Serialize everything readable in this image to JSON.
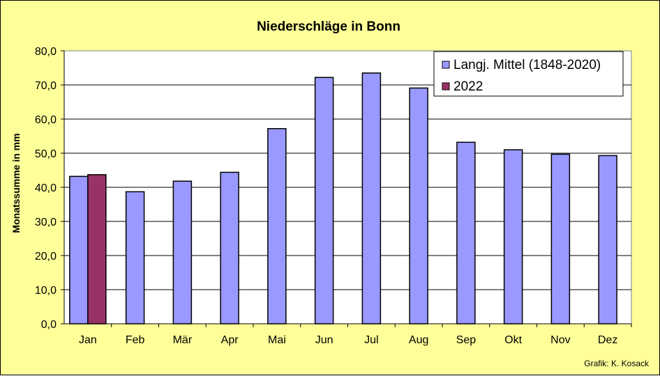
{
  "chart_data": {
    "type": "bar",
    "title": "Niederschläge in Bonn",
    "ylabel": "Monatssumme in mm",
    "xlabel": "",
    "ylim": [
      0,
      80
    ],
    "ytick_step": 10,
    "ytick_labels": [
      "0,0",
      "10,0",
      "20,0",
      "30,0",
      "40,0",
      "50,0",
      "60,0",
      "70,0",
      "80,0"
    ],
    "categories": [
      "Jan",
      "Feb",
      "Mär",
      "Apr",
      "Mai",
      "Jun",
      "Jul",
      "Aug",
      "Sep",
      "Okt",
      "Nov",
      "Dez"
    ],
    "series": [
      {
        "name": "Langj. Mittel (1848-2020)",
        "color": "#9999ff",
        "values": [
          43.2,
          38.7,
          41.8,
          44.4,
          57.2,
          72.2,
          73.5,
          69.1,
          53.2,
          51.0,
          49.7,
          49.3
        ]
      },
      {
        "name": "2022",
        "color": "#993366",
        "values": [
          43.7,
          null,
          null,
          null,
          null,
          null,
          null,
          null,
          null,
          null,
          null,
          null
        ]
      }
    ],
    "grid": true,
    "legend_position": "top-right",
    "plot_background": "#ffffff",
    "chart_background": "#ffff99",
    "credit": "Grafik:  K. Kosack"
  }
}
